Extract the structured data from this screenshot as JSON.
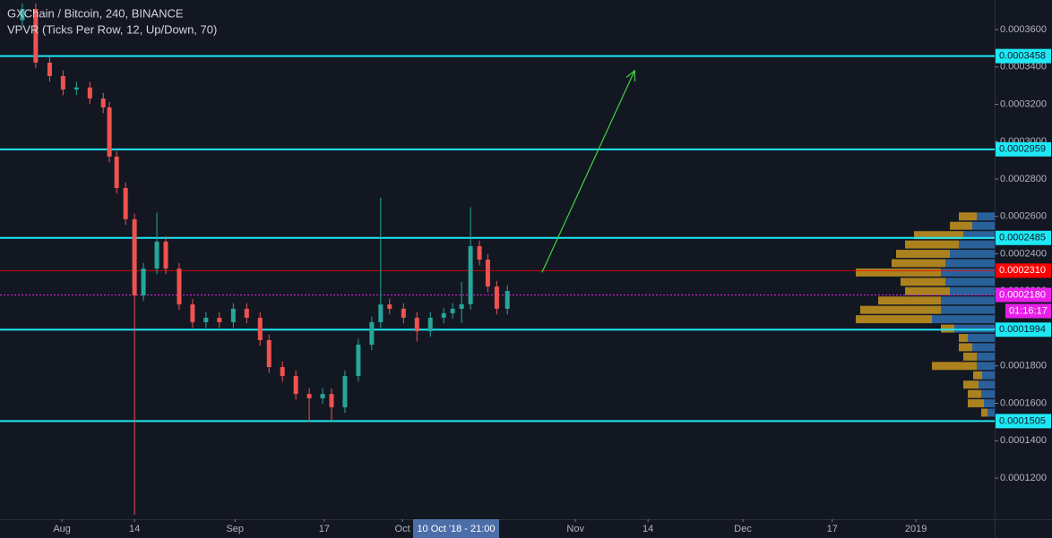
{
  "chart_data": {
    "type": "candlestick",
    "title": "GXChain / Bitcoin, 240, BINANCE",
    "subtitle": "VPVR (Ticks Per Row, 12, Up/Down, 70)",
    "up_color": "#26a69a",
    "down_color": "#ef5350",
    "x": [
      -7.1,
      -4.7,
      -2.2,
      0.2,
      2.6,
      5.0,
      7.4,
      8.5,
      9.8,
      11.4,
      13.0,
      14.6,
      17.0,
      18.6,
      21.0,
      23.4,
      25.8,
      28.2,
      30.7,
      33.1,
      35.5,
      37.1,
      39.5,
      41.9,
      44.3,
      46.7,
      48.3,
      50.7,
      53.1,
      55.5,
      57.1,
      58.7,
      61.2,
      63.6,
      66.0,
      68.4,
      70.0,
      71.6,
      73.2,
      74.8,
      76.3,
      77.9,
      79.8
    ],
    "open": [
      0.000365,
      0.000371,
      0.0003423,
      0.0003351,
      0.0003279,
      0.000329,
      0.0003231,
      0.0003183,
      0.000292,
      0.0002752,
      0.0002585,
      0.0002177,
      0.0002321,
      0.0002465,
      0.0002321,
      0.0002129,
      0.0002034,
      0.0002058,
      0.0002034,
      0.0002106,
      0.0002058,
      0.0001938,
      0.0001794,
      0.0001746,
      0.000165,
      0.0001627,
      0.000165,
      0.0001579,
      0.0001746,
      0.0001914,
      0.0002034,
      0.0002129,
      0.0002106,
      0.0002058,
      0.0001986,
      0.0002058,
      0.0002082,
      0.0002106,
      0.000213,
      0.0002441,
      0.0002369,
      0.0002225,
      0.0002106
    ],
    "high": [
      0.000374,
      0.000374,
      0.0003453,
      0.0003381,
      0.000332,
      0.000332,
      0.0003261,
      0.0003213,
      0.000295,
      0.0002782,
      0.0002615,
      0.0002351,
      0.000262,
      0.0002495,
      0.0002351,
      0.0002159,
      0.0002088,
      0.0002088,
      0.0002136,
      0.0002136,
      0.0002088,
      0.0001968,
      0.0001824,
      0.0001776,
      0.000168,
      0.000168,
      0.000168,
      0.0001776,
      0.0001944,
      0.0002064,
      0.00027,
      0.0002159,
      0.0002136,
      0.0002088,
      0.0002088,
      0.0002112,
      0.0002136,
      0.000225,
      0.000265,
      0.0002471,
      0.0002399,
      0.0002255,
      0.0002231
    ],
    "low": [
      0.000362,
      0.0003393,
      0.0003321,
      0.0003249,
      0.0003249,
      0.0003201,
      0.0003153,
      0.000289,
      0.0002722,
      0.0002555,
      0.0001004,
      0.0002147,
      0.0002291,
      0.0002291,
      0.0002099,
      0.0002004,
      0.0002004,
      0.0002004,
      0.0002004,
      0.0002028,
      0.0001908,
      0.0001764,
      0.0001716,
      0.000162,
      0.00015,
      0.0001597,
      0.0001505,
      0.0001549,
      0.0001716,
      0.0001884,
      0.0002004,
      0.0002076,
      0.0002028,
      0.000193,
      0.0001956,
      0.0002028,
      0.0002052,
      0.000203,
      0.00021,
      0.0002339,
      0.0002195,
      0.0002076,
      0.0002076
    ],
    "close": [
      0.000371,
      0.0003423,
      0.0003351,
      0.0003279,
      0.000329,
      0.0003231,
      0.0003183,
      0.000292,
      0.0002752,
      0.0002585,
      0.0002177,
      0.0002321,
      0.0002465,
      0.0002321,
      0.0002129,
      0.0002034,
      0.0002058,
      0.0002034,
      0.0002106,
      0.0002058,
      0.0001938,
      0.0001794,
      0.0001746,
      0.000165,
      0.0001627,
      0.000165,
      0.0001579,
      0.0001746,
      0.0001914,
      0.0002034,
      0.0002129,
      0.0002106,
      0.0002058,
      0.0001986,
      0.0002058,
      0.0002082,
      0.0002106,
      0.000213,
      0.0002441,
      0.0002369,
      0.0002225,
      0.0002106,
      0.0002201
    ],
    "xlim": [
      -11.1,
      167.1
    ],
    "xticks": [
      {
        "value": 0,
        "label": "Aug"
      },
      {
        "value": 13,
        "label": "14"
      },
      {
        "value": 31,
        "label": "Sep"
      },
      {
        "value": 47,
        "label": "17"
      },
      {
        "value": 61,
        "label": "Oct"
      },
      {
        "value": 92,
        "label": "Nov"
      },
      {
        "value": 105,
        "label": "14"
      },
      {
        "value": 122,
        "label": "Dec"
      },
      {
        "value": 138,
        "label": "17"
      },
      {
        "value": 153,
        "label": "2019"
      }
    ],
    "ylim": [
      9.8e-05,
      0.0003758
    ],
    "yticks": [
      {
        "value": 0.00012,
        "label": "0.0001200"
      },
      {
        "value": 0.00014,
        "label": "0.0001400"
      },
      {
        "value": 0.00016,
        "label": "0.0001600"
      },
      {
        "value": 0.00018,
        "label": "0.0001800"
      },
      {
        "value": 0.0002,
        "label": "0.0002000"
      },
      {
        "value": 0.00022,
        "label": "0.0002200"
      },
      {
        "value": 0.00024,
        "label": "0.0002400"
      },
      {
        "value": 0.00026,
        "label": "0.0002600"
      },
      {
        "value": 0.00028,
        "label": "0.0002800"
      },
      {
        "value": 0.0003,
        "label": "0.0003000"
      },
      {
        "value": 0.00032,
        "label": "0.0003200"
      },
      {
        "value": 0.00034,
        "label": "0.0003400"
      },
      {
        "value": 0.00036,
        "label": "0.0003600"
      }
    ],
    "volume_profile": {
      "up_color": "#2f6fb0",
      "down_color": "#c8951f",
      "price": [
        0.000155,
        0.00016,
        0.000165,
        0.00017,
        0.000175,
        0.00018,
        0.000185,
        0.00019,
        0.000195,
        0.0002,
        0.000205,
        0.00021,
        0.000215,
        0.00022,
        0.000225,
        0.00023,
        0.000235,
        0.00024,
        0.000245,
        0.00025,
        0.000255,
        0.00026
      ],
      "up": [
        8,
        12,
        15,
        18,
        14,
        20,
        20,
        25,
        30,
        45,
        70,
        60,
        60,
        50,
        55,
        60,
        55,
        50,
        40,
        35,
        25,
        20
      ],
      "down": [
        7,
        18,
        15,
        17,
        10,
        50,
        15,
        15,
        10,
        15,
        85,
        90,
        70,
        50,
        50,
        95,
        60,
        60,
        60,
        55,
        25,
        20
      ]
    },
    "levels": {
      "color": "#1de9f5",
      "values": [
        0.0003458,
        0.0002959,
        0.0002485,
        0.0001994,
        0.0001505
      ]
    },
    "last_price": {
      "color": "#ff0000",
      "value": 0.000231,
      "label": "0.0002310"
    },
    "current_price": {
      "color": "#e91ee9",
      "value": 0.000218,
      "label": "0.0002180",
      "timer": "01:16:17"
    },
    "arrow": {
      "color": "#3fd43f",
      "x": [
        86,
        102.6
      ],
      "y": [
        0.00023,
        0.000338
      ]
    },
    "crosshair_label": "10 Oct '18 - 21:00"
  }
}
